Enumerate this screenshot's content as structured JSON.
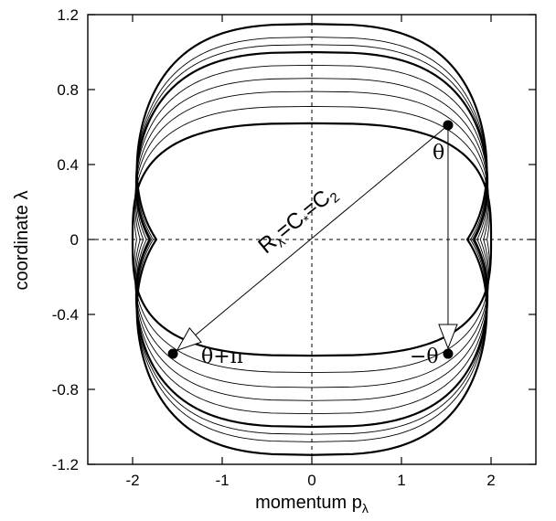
{
  "chart_data": {
    "type": "line",
    "title": "",
    "xlabel": {
      "main": "momentum p",
      "sub": "λ"
    },
    "ylabel": "coordinate λ",
    "xlim": [
      -2.5,
      2.5
    ],
    "ylim": [
      -1.2,
      1.2
    ],
    "xticks": [
      {
        "value": -2,
        "label": "-2"
      },
      {
        "value": -1,
        "label": "-1"
      },
      {
        "value": 0,
        "label": "0"
      },
      {
        "value": 1,
        "label": "1"
      },
      {
        "value": 2,
        "label": "2"
      }
    ],
    "yticks": [
      {
        "value": -1.2,
        "label": "-1.2"
      },
      {
        "value": -0.8,
        "label": "-0.8"
      },
      {
        "value": -0.4,
        "label": "-0.4"
      },
      {
        "value": 0,
        "label": "0"
      },
      {
        "value": 0.4,
        "label": "0.4"
      },
      {
        "value": 0.8,
        "label": "0.8"
      },
      {
        "value": 1.2,
        "label": "1.2"
      }
    ],
    "grid": false,
    "zero_lines": true,
    "contours": [
      {
        "ymax": 0.62,
        "bold": true
      },
      {
        "ymax": 0.71,
        "bold": false
      },
      {
        "ymax": 0.79,
        "bold": false
      },
      {
        "ymax": 0.86,
        "bold": false
      },
      {
        "ymax": 0.93,
        "bold": false
      },
      {
        "ymax": 1.0,
        "bold": true
      },
      {
        "ymax": 1.04,
        "bold": false
      },
      {
        "ymax": 1.08,
        "bold": false
      },
      {
        "ymax": 1.15,
        "bold": true
      }
    ],
    "points": [
      {
        "x": 1.52,
        "y": 0.61,
        "label": "θ"
      },
      {
        "x": -1.55,
        "y": -0.61,
        "label": "θ+π"
      },
      {
        "x": 1.52,
        "y": -0.61,
        "label": "−θ"
      }
    ],
    "arrows": [
      {
        "from": [
          1.52,
          0.61
        ],
        "to": [
          -1.55,
          -0.61
        ]
      },
      {
        "from": [
          1.52,
          0.61
        ],
        "to": [
          1.52,
          -0.61
        ]
      }
    ],
    "annotations": {
      "theta": "θ",
      "theta_plus_pi": "θ+π",
      "minus_theta": "−θ",
      "r_label": {
        "main": "R",
        "sub1": "λ",
        "mid1": "=C",
        "sub2": "*",
        "mid2": "=C",
        "sub3": "2"
      }
    }
  }
}
